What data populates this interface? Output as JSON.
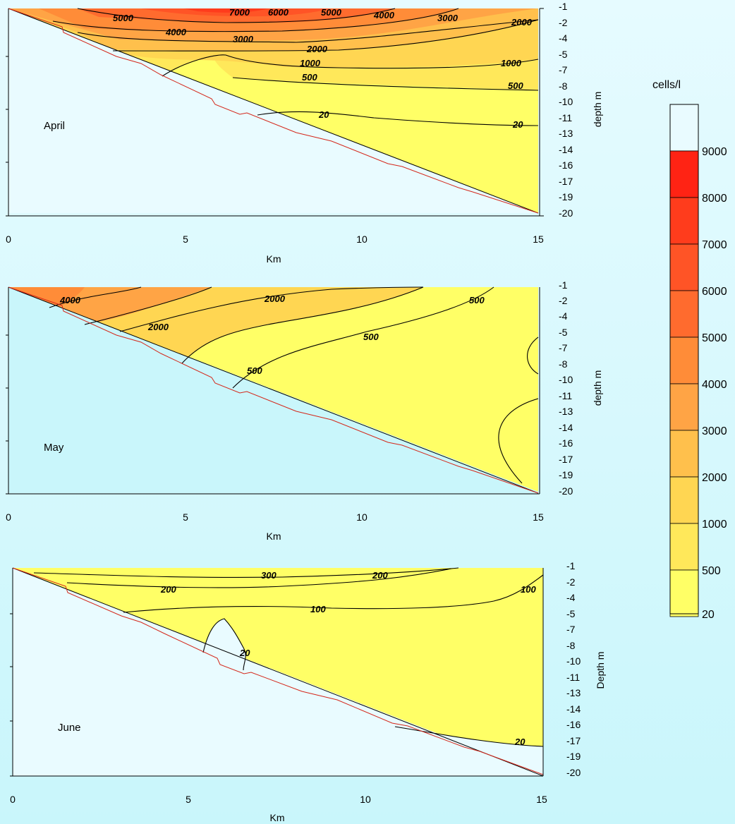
{
  "chart_data": {
    "type": "contour",
    "legend": {
      "title": "cells/l",
      "levels": [
        "9000",
        "8000",
        "7000",
        "6000",
        "5000",
        "4000",
        "3000",
        "2000",
        "1000",
        "500",
        "20"
      ],
      "colors": [
        "#e9fbff",
        "#ff2314",
        "#ff3c1c",
        "#ff5426",
        "#ff6b2e",
        "#ff8c38",
        "#ffa445",
        "#ffc04c",
        "#ffd652",
        "#ffe85a",
        "#ffff66"
      ]
    },
    "panels": [
      {
        "label": "April",
        "xlabel": "Km",
        "ylabel": "depth m",
        "xlim": [
          0,
          15
        ],
        "x_ticks": [
          "0",
          "5",
          "10",
          "15"
        ],
        "depth_ticks": [
          "-1",
          "-2",
          "-4",
          "-5",
          "-7",
          "-8",
          "-10",
          "-11",
          "-13",
          "-14",
          "-16",
          "-17",
          "-19",
          "-20"
        ],
        "contour_labels": [
          "5000",
          "7000",
          "6000",
          "5000",
          "4000",
          "3000",
          "2000",
          "4000",
          "3000",
          "2000",
          "1000",
          "1000",
          "500",
          "500",
          "20",
          "20"
        ]
      },
      {
        "label": "May",
        "xlabel": "Km",
        "ylabel": "depth m",
        "xlim": [
          0,
          15
        ],
        "x_ticks": [
          "0",
          "5",
          "10",
          "15"
        ],
        "depth_ticks": [
          "-1",
          "-2",
          "-4",
          "-5",
          "-7",
          "-8",
          "-10",
          "-11",
          "-13",
          "-14",
          "-16",
          "-17",
          "-19",
          "-20"
        ],
        "contour_labels": [
          "4000",
          "2000",
          "2000",
          "500",
          "500",
          "500"
        ]
      },
      {
        "label": "June",
        "xlabel": "Km",
        "ylabel": "Depth m",
        "xlim": [
          0,
          15
        ],
        "x_ticks": [
          "0",
          "5",
          "10",
          "15"
        ],
        "depth_ticks": [
          "-1",
          "-2",
          "-4",
          "-5",
          "-7",
          "-8",
          "-10",
          "-11",
          "-13",
          "-14",
          "-16",
          "-17",
          "-19",
          "-20"
        ],
        "contour_labels": [
          "300",
          "200",
          "200",
          "100",
          "100",
          "20",
          "20"
        ]
      }
    ]
  }
}
